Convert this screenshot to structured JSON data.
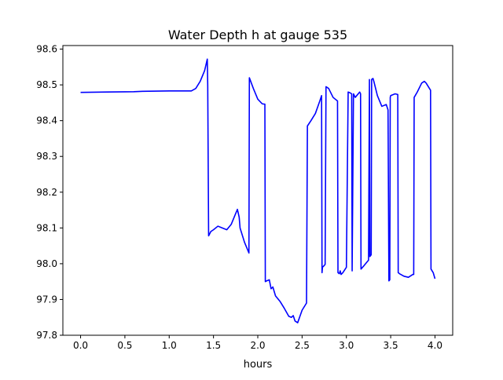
{
  "chart_data": {
    "type": "line",
    "title": "Water Depth h at gauge 535",
    "xlabel": "hours",
    "ylabel": "",
    "xlim": [
      -0.2,
      4.2
    ],
    "ylim": [
      97.8,
      98.61
    ],
    "xticks": [
      0.0,
      0.5,
      1.0,
      1.5,
      2.0,
      2.5,
      3.0,
      3.5,
      4.0
    ],
    "xtick_labels": [
      "0.0",
      "0.5",
      "1.0",
      "1.5",
      "2.0",
      "2.5",
      "3.0",
      "3.5",
      "4.0"
    ],
    "yticks": [
      97.8,
      97.9,
      98.0,
      98.1,
      98.2,
      98.3,
      98.4,
      98.5,
      98.6
    ],
    "ytick_labels": [
      "97.8",
      "97.9",
      "98.0",
      "98.1",
      "98.2",
      "98.3",
      "98.4",
      "98.5",
      "98.6"
    ],
    "grid": false,
    "series": [
      {
        "color": "#0000ff",
        "x": [
          0.0,
          0.3,
          0.6,
          0.7,
          1.0,
          1.1,
          1.25,
          1.3,
          1.35,
          1.4,
          1.43,
          1.435,
          1.445,
          1.47,
          1.5,
          1.55,
          1.6,
          1.65,
          1.7,
          1.75,
          1.77,
          1.79,
          1.8,
          1.85,
          1.9,
          1.905,
          1.95,
          2.0,
          2.05,
          2.08,
          2.085,
          2.1,
          2.13,
          2.15,
          2.17,
          2.2,
          2.25,
          2.3,
          2.35,
          2.38,
          2.4,
          2.42,
          2.45,
          2.5,
          2.55,
          2.56,
          2.6,
          2.65,
          2.7,
          2.72,
          2.725,
          2.73,
          2.75,
          2.76,
          2.77,
          2.8,
          2.85,
          2.9,
          2.905,
          2.92,
          2.93,
          2.94,
          2.96,
          3.0,
          3.02,
          3.04,
          3.06,
          3.065,
          3.08,
          3.1,
          3.15,
          3.16,
          3.165,
          3.2,
          3.25,
          3.26,
          3.265,
          3.28,
          3.285,
          3.3,
          3.31,
          3.35,
          3.4,
          3.45,
          3.47,
          3.48,
          3.49,
          3.495,
          3.5,
          3.55,
          3.58,
          3.585,
          3.6,
          3.65,
          3.7,
          3.75,
          3.76,
          3.765,
          3.8,
          3.85,
          3.88,
          3.9,
          3.95,
          3.955,
          3.98,
          4.0
        ],
        "y": [
          98.479,
          98.48,
          98.481,
          98.482,
          98.483,
          98.483,
          98.483,
          98.49,
          98.51,
          98.54,
          98.572,
          98.5,
          98.078,
          98.09,
          98.095,
          98.105,
          98.1,
          98.095,
          98.11,
          98.14,
          98.152,
          98.13,
          98.1,
          98.06,
          98.03,
          98.52,
          98.49,
          98.46,
          98.447,
          98.446,
          97.95,
          97.952,
          97.955,
          97.93,
          97.935,
          97.91,
          97.895,
          97.875,
          97.853,
          97.85,
          97.855,
          97.84,
          97.835,
          97.87,
          97.89,
          98.385,
          98.4,
          98.42,
          98.455,
          98.47,
          97.975,
          97.99,
          97.995,
          97.998,
          98.495,
          98.49,
          98.465,
          98.455,
          97.975,
          97.972,
          97.98,
          97.97,
          97.975,
          97.99,
          98.48,
          98.478,
          98.475,
          97.98,
          98.475,
          98.465,
          98.48,
          98.475,
          97.985,
          97.995,
          98.01,
          98.515,
          98.02,
          98.025,
          98.515,
          98.518,
          98.51,
          98.47,
          98.44,
          98.445,
          98.43,
          97.952,
          97.955,
          98.465,
          98.47,
          98.475,
          98.473,
          97.975,
          97.972,
          97.965,
          97.962,
          97.97,
          97.97,
          98.465,
          98.48,
          98.505,
          98.51,
          98.505,
          98.485,
          97.985,
          97.975,
          97.958
        ]
      }
    ]
  }
}
